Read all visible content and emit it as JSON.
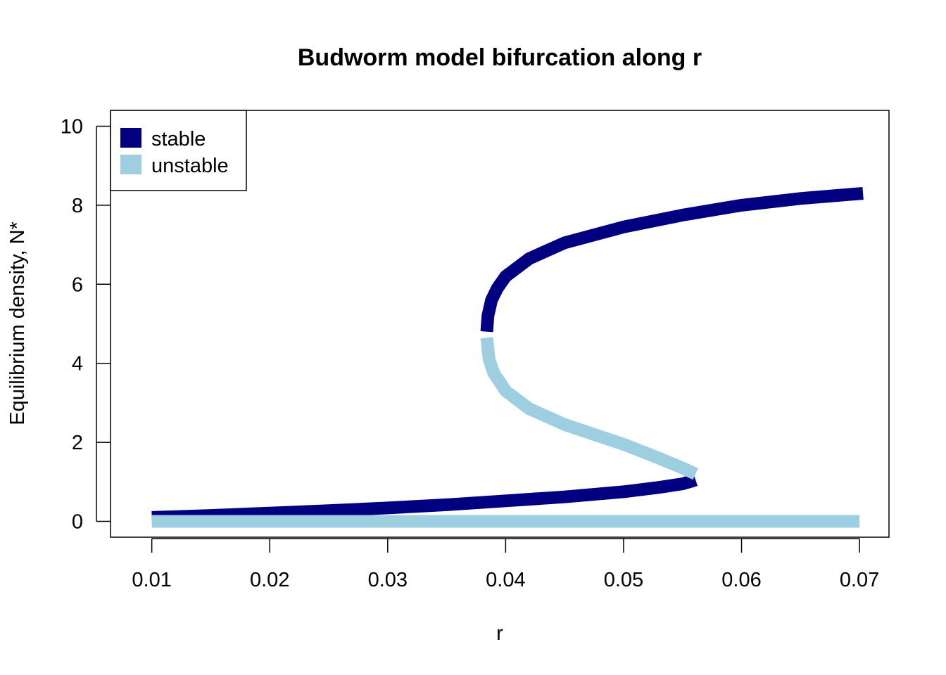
{
  "chart_data": {
    "type": "line",
    "title": "Budworm model bifurcation along r",
    "xlabel": "r",
    "ylabel": "Equilibrium density, N*",
    "xlim": [
      0.0065,
      0.0725
    ],
    "ylim": [
      -0.4,
      10.4
    ],
    "x_ticks": [
      "0.01",
      "0.02",
      "0.03",
      "0.04",
      "0.05",
      "0.06",
      "0.07"
    ],
    "y_ticks": [
      "0",
      "2",
      "4",
      "6",
      "8",
      "10"
    ],
    "legend": {
      "placement": "top-left",
      "entries": [
        {
          "label": "stable",
          "color": "#000080"
        },
        {
          "label": "unstable",
          "color": "#9ecfe0"
        }
      ]
    },
    "series": [
      {
        "name": "stable",
        "color": "#000080",
        "segments": [
          [
            [
              0.01,
              0.1
            ],
            [
              0.015,
              0.15
            ],
            [
              0.02,
              0.21
            ],
            [
              0.025,
              0.27
            ],
            [
              0.03,
              0.34
            ],
            [
              0.035,
              0.42
            ],
            [
              0.04,
              0.52
            ],
            [
              0.045,
              0.62
            ],
            [
              0.05,
              0.75
            ],
            [
              0.053,
              0.86
            ],
            [
              0.055,
              0.95
            ],
            [
              0.0558,
              1.02
            ],
            [
              0.0561,
              1.05
            ]
          ],
          [
            [
              0.0384,
              4.8
            ],
            [
              0.0385,
              5.2
            ],
            [
              0.0388,
              5.6
            ],
            [
              0.0393,
              5.9
            ],
            [
              0.04,
              6.2
            ],
            [
              0.042,
              6.65
            ],
            [
              0.045,
              7.05
            ],
            [
              0.05,
              7.45
            ],
            [
              0.055,
              7.75
            ],
            [
              0.06,
              8.0
            ],
            [
              0.065,
              8.17
            ],
            [
              0.0703,
              8.3
            ]
          ]
        ]
      },
      {
        "name": "unstable",
        "color": "#9ecfe0",
        "segments": [
          [
            [
              0.01,
              0.0
            ],
            [
              0.07,
              0.0
            ]
          ],
          [
            [
              0.0384,
              4.65
            ],
            [
              0.0386,
              4.1
            ],
            [
              0.039,
              3.75
            ],
            [
              0.04,
              3.3
            ],
            [
              0.042,
              2.85
            ],
            [
              0.045,
              2.45
            ],
            [
              0.048,
              2.15
            ],
            [
              0.05,
              1.95
            ],
            [
              0.053,
              1.6
            ],
            [
              0.055,
              1.35
            ],
            [
              0.0561,
              1.2
            ]
          ]
        ]
      }
    ]
  }
}
